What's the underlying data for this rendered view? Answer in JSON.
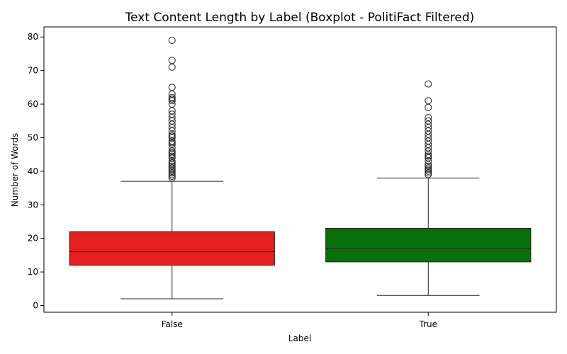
{
  "chart_data": {
    "type": "boxplot",
    "title": "Text Content Length by Label (Boxplot - PolitiFact Filtered)",
    "xlabel": "Label",
    "ylabel": "Number of Words",
    "categories": [
      "False",
      "True"
    ],
    "ylim": [
      -2,
      83
    ],
    "yticks": [
      0,
      10,
      20,
      30,
      40,
      50,
      60,
      70,
      80
    ],
    "grid": false,
    "series": [
      {
        "category": "False",
        "color": "#e31f1f",
        "min": 2,
        "q1": 12,
        "median": 16,
        "q3": 22,
        "max": 37,
        "outliers": [
          38,
          38.5,
          39,
          39.5,
          40,
          40.5,
          41,
          41.5,
          42,
          42.5,
          43,
          44,
          44.5,
          45,
          45.5,
          46,
          47,
          48,
          48.5,
          49,
          50,
          50.5,
          51,
          52,
          53,
          54,
          55,
          56,
          57,
          58,
          60,
          61,
          61.5,
          62,
          63,
          65,
          71,
          73,
          79
        ]
      },
      {
        "category": "True",
        "color": "#087008",
        "min": 3,
        "q1": 13,
        "median": 17,
        "q3": 23,
        "max": 38,
        "outliers": [
          39,
          39.5,
          40,
          40.5,
          41,
          41.5,
          42,
          43,
          44,
          44.5,
          45,
          46,
          47,
          48,
          49,
          50,
          51,
          52,
          53,
          54,
          55,
          56,
          59,
          61,
          66
        ]
      }
    ]
  }
}
